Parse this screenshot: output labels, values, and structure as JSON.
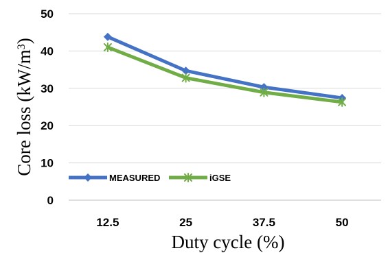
{
  "chart_data": {
    "type": "line",
    "title": "",
    "xlabel": "Duty cycle (%)",
    "ylabel": "Core loss (kW/m",
    "ylabel_superscript": "3",
    "ylabel_close": ")",
    "categories": [
      "12.5",
      "25",
      "37.5",
      "50"
    ],
    "ylim": [
      0,
      50
    ],
    "yticks": [
      "0",
      "10",
      "20",
      "30",
      "40",
      "50"
    ],
    "grid": "horizontal",
    "legend_position": "bottom-left",
    "series": [
      {
        "name": "MEASURED",
        "values": [
          43.8,
          34.7,
          30.3,
          27.4
        ],
        "color": "#4472C4",
        "marker": "diamond"
      },
      {
        "name": "iGSE",
        "values": [
          41.0,
          32.8,
          28.9,
          26.3
        ],
        "color": "#70AD47",
        "marker": "star"
      }
    ]
  }
}
